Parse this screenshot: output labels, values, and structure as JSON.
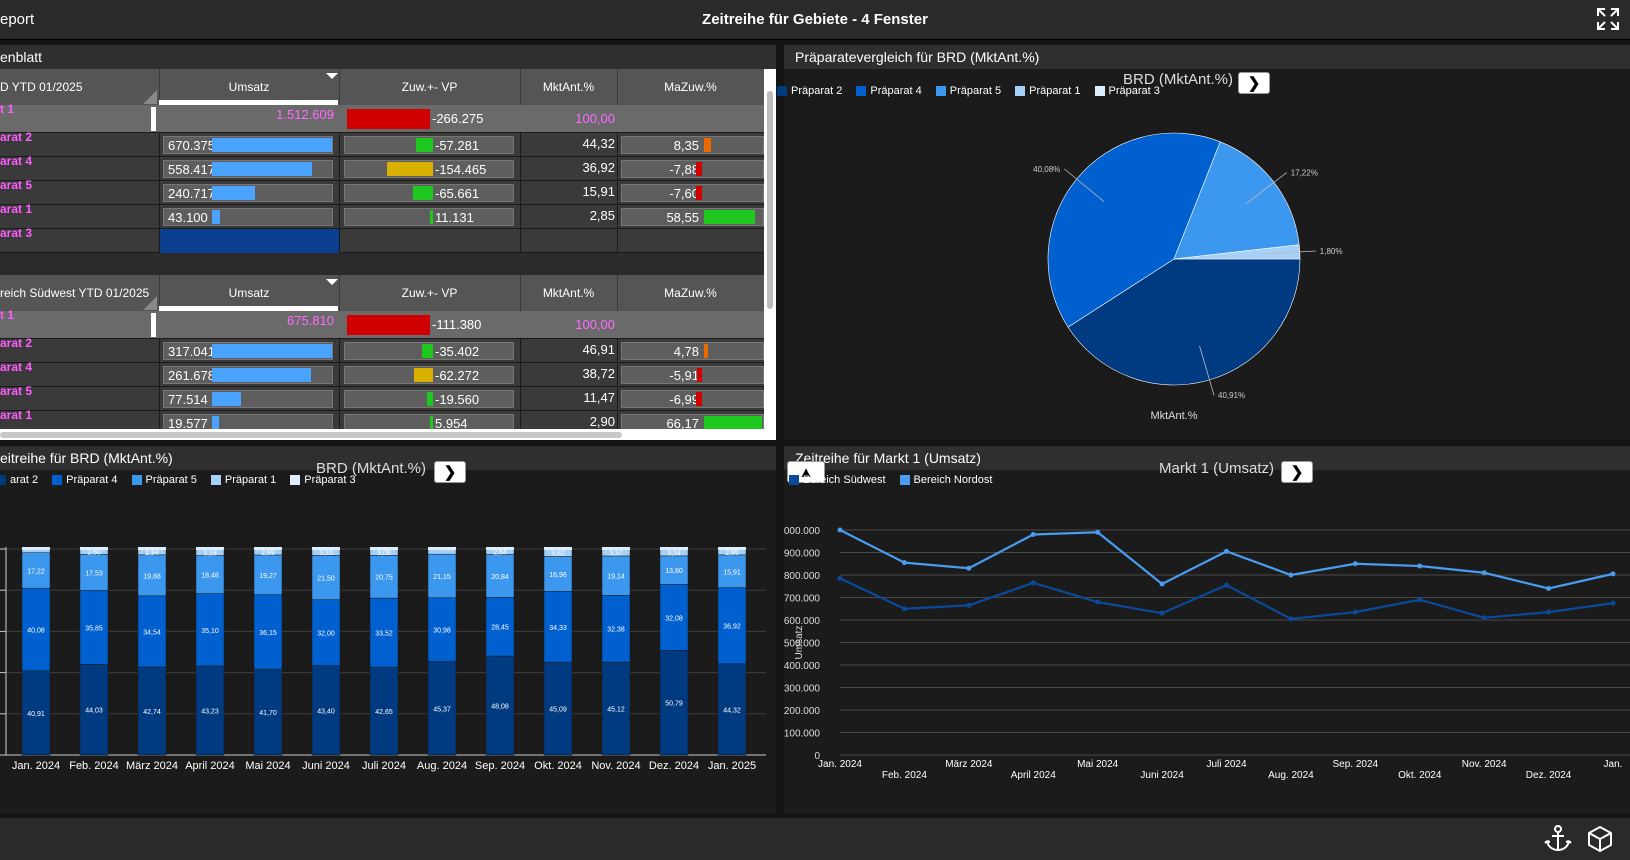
{
  "app": {
    "title_fragment": "eport",
    "window_title": "Zeitreihe für Gebiete - 4 Fenster"
  },
  "colors": {
    "c1": "#003a80",
    "c2": "#0060d0",
    "c3": "#3c97ef",
    "c4": "#a6d0f7",
    "c5": "#ddeefc",
    "line1": "#4a9cf0",
    "line2": "#0a4a9a",
    "bar_blue": "#4aa3ff",
    "red": "#d00000",
    "green": "#1ec81e",
    "yellow": "#d8b000",
    "orange": "#e86a00"
  },
  "panel1": {
    "title": "enblatt",
    "columns": [
      "Umsatz",
      "Zuw.+- VP",
      "MktAnt.%",
      "MaZuw.%"
    ],
    "tables": [
      {
        "header": "D YTD 01/2025",
        "total": {
          "name": "t 1",
          "umsatz": "1.512.609",
          "zuw": "-266.275",
          "mkt": "100,00",
          "mazuw": ""
        },
        "rows": [
          {
            "name": "arat 2",
            "umsatz": "670.375",
            "u": 670375,
            "zuw": "-57.281",
            "z": -57281,
            "zcolor": "green",
            "mkt": "44,32",
            "mazuw": "8,35",
            "m": 8.35,
            "mcolor": "orange"
          },
          {
            "name": "arat 4",
            "umsatz": "558.417",
            "u": 558417,
            "zuw": "-154.465",
            "z": -154465,
            "zcolor": "yellow",
            "mkt": "36,92",
            "mazuw": "-7,88",
            "m": -7.88,
            "mcolor": "red"
          },
          {
            "name": "arat 5",
            "umsatz": "240.717",
            "u": 240717,
            "zuw": "-65.661",
            "z": -65661,
            "zcolor": "green",
            "mkt": "15,91",
            "mazuw": "-7,60",
            "m": -7.6,
            "mcolor": "red"
          },
          {
            "name": "arat 1",
            "umsatz": "43.100",
            "u": 43100,
            "zuw": "11.131",
            "z": 11131,
            "zcolor": "green",
            "mkt": "2,85",
            "mazuw": "58,55",
            "m": 58.55,
            "mcolor": "green"
          },
          {
            "name": "arat 3",
            "umsatz": "",
            "u": 0,
            "zuw": "",
            "z": 0,
            "zcolor": "green",
            "mkt": "",
            "mazuw": "",
            "m": 0,
            "mcolor": "green"
          }
        ]
      },
      {
        "header": "reich Südwest YTD 01/2025",
        "total": {
          "name": "t 1",
          "umsatz": "675.810",
          "zuw": "-111.380",
          "mkt": "100,00",
          "mazuw": ""
        },
        "rows": [
          {
            "name": "arat 2",
            "umsatz": "317.041",
            "u": 317041,
            "zuw": "-35.402",
            "z": -35402,
            "zcolor": "green",
            "mkt": "46,91",
            "mazuw": "4,78",
            "m": 4.78,
            "mcolor": "orange"
          },
          {
            "name": "arat 4",
            "umsatz": "261.678",
            "u": 261678,
            "zuw": "-62.272",
            "z": -62272,
            "zcolor": "yellow",
            "mkt": "38,72",
            "mazuw": "-5,91",
            "m": -5.91,
            "mcolor": "red"
          },
          {
            "name": "arat 5",
            "umsatz": "77.514",
            "u": 77514,
            "zuw": "-19.560",
            "z": -19560,
            "zcolor": "green",
            "mkt": "11,47",
            "mazuw": "-6,99",
            "m": -6.99,
            "mcolor": "red"
          },
          {
            "name": "arat 1",
            "umsatz": "19.577",
            "u": 19577,
            "zuw": "5.954",
            "z": 5954,
            "zcolor": "green",
            "mkt": "2,90",
            "mazuw": "66,17",
            "m": 66.17,
            "mcolor": "green"
          }
        ]
      }
    ]
  },
  "panel2": {
    "title": "Präparatevergleich für BRD (MktAnt.%)"
  },
  "panel3": {
    "title": "eitreihe für BRD (MktAnt.%)"
  },
  "panel4": {
    "title": "Zeitreihe für Markt 1 (Umsatz)"
  },
  "chart_data": [
    {
      "type": "pie",
      "title": "BRD (MktAnt.%)",
      "xlabel": "MktAnt.%",
      "legend": [
        "Präparat 2",
        "Präparat 4",
        "Präparat 5",
        "Präparat 1",
        "Präparat 3"
      ],
      "slices": [
        {
          "name": "Präparat 2",
          "value": 40.91,
          "label": "40,91%"
        },
        {
          "name": "Präparat 4",
          "value": 40.08,
          "label": "40,08%"
        },
        {
          "name": "Präparat 5",
          "value": 17.22,
          "label": "17,22%"
        },
        {
          "name": "Präparat 1",
          "value": 1.8,
          "label": "1,80%"
        },
        {
          "name": "Präparat 3",
          "value": 0.0,
          "label": ""
        }
      ]
    },
    {
      "type": "bar",
      "stacked": true,
      "title": "BRD (MktAnt.%)",
      "legend": [
        "arat 2",
        "Präparat 4",
        "Präparat 5",
        "Präparat 1",
        "Präparat 3"
      ],
      "categories": [
        "Jan. 2024",
        "Feb. 2024",
        "März 2024",
        "April 2024",
        "Mai 2024",
        "Juni 2024",
        "Juli 2024",
        "Aug. 2024",
        "Sep. 2024",
        "Okt. 2024",
        "Nov. 2024",
        "Dez. 2024",
        "Jan. 2025"
      ],
      "ylim": [
        0,
        100
      ],
      "series": [
        {
          "name": "Präparat 2",
          "values": [
            40.91,
            44.03,
            42.74,
            43.23,
            41.7,
            43.4,
            42.65,
            45.37,
            48.08,
            45.09,
            45.12,
            50.79,
            44.32
          ],
          "labels": [
            "40,91",
            "44,03",
            "42,74",
            "43,23",
            "41,70",
            "43,40",
            "42,65",
            "45,37",
            "48,08",
            "45,09",
            "45,12",
            "50,79",
            "44,32"
          ]
        },
        {
          "name": "Präparat 4",
          "values": [
            40.08,
            35.85,
            34.54,
            35.1,
            36.15,
            32.0,
            33.52,
            30.98,
            28.45,
            34.33,
            32.38,
            32.08,
            36.92
          ],
          "labels": [
            "40,08",
            "35,85",
            "34,54",
            "35,10",
            "36,15",
            "32,00",
            "33,52",
            "30,98",
            "28,45",
            "34,33",
            "32,38",
            "32,08",
            "36,92"
          ]
        },
        {
          "name": "Präparat 5",
          "values": [
            17.22,
            17.53,
            19.88,
            18.48,
            19.27,
            21.5,
            20.75,
            21.15,
            20.84,
            16.96,
            19.14,
            13.8,
            15.91
          ],
          "labels": [
            "17,22",
            "17,53",
            "19,88",
            "18,48",
            "19,27",
            "21,50",
            "20,75",
            "21,15",
            "20,84",
            "16,96",
            "19,14",
            "13,80",
            "15,91"
          ]
        },
        {
          "name": "Präparat 1",
          "values": [
            1.79,
            2.6,
            2.84,
            3.18,
            2.89,
            3.1,
            3.08,
            2.5,
            2.64,
            3.62,
            3.37,
            3.34,
            2.85
          ],
          "labels": [
            "",
            "2,60",
            "2,84",
            "3,18",
            "2,89",
            "3,10",
            "3,08",
            "",
            "2,64",
            "3,62",
            "3,37",
            "3,34",
            "2,85"
          ]
        }
      ]
    },
    {
      "type": "line",
      "title": "Markt 1 (Umsatz)",
      "ylabel": "Umsatz",
      "legend": [
        "Bereich Südwest",
        "Bereich Nordost"
      ],
      "categories": [
        "Jan. 2024",
        "Feb. 2024",
        "März 2024",
        "April 2024",
        "Mai 2024",
        "Juni 2024",
        "Juli 2024",
        "Aug. 2024",
        "Sep. 2024",
        "Okt. 2024",
        "Nov. 2024",
        "Dez. 2024",
        "Jan."
      ],
      "ylim": [
        0,
        1000000
      ],
      "yticks": [
        "0",
        "100.000",
        "200.000",
        "300.000",
        "400.000",
        "500.000",
        "600.000",
        "700.000",
        "800.000",
        "900.000",
        "1.000.000"
      ],
      "series": [
        {
          "name": "Bereich Nordost",
          "values": [
            1000000,
            855000,
            830000,
            980000,
            990000,
            760000,
            905000,
            800000,
            850000,
            840000,
            810000,
            740000,
            805000
          ]
        },
        {
          "name": "Bereich Südwest",
          "values": [
            785000,
            650000,
            665000,
            765000,
            680000,
            630000,
            755000,
            605000,
            635000,
            690000,
            610000,
            635000,
            675000
          ]
        }
      ]
    }
  ]
}
